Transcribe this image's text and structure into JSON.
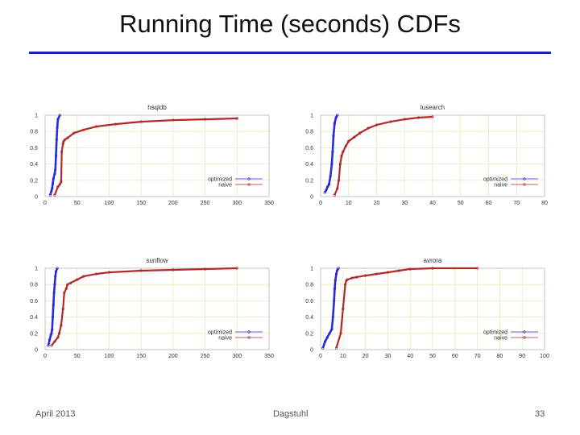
{
  "slide": {
    "title": "Running Time (seconds) CDFs",
    "footer_left": "April 2013",
    "footer_center": "Dagstuhl",
    "footer_right": "33"
  },
  "colors": {
    "optimized": "#2a2ad6",
    "naive": "#b02a2a",
    "grid": "#f0e6b8",
    "axis": "#444444",
    "title_rule": "#1f1fb4"
  },
  "chart_data": [
    {
      "type": "line",
      "title": "hsqldb",
      "xlim": [
        0,
        350
      ],
      "ylim": [
        0,
        1
      ],
      "xticks": [
        0,
        50,
        100,
        150,
        200,
        250,
        300,
        350
      ],
      "yticks": [
        0,
        0.2,
        0.4,
        0.6,
        0.8,
        1
      ],
      "ytick_labels": [
        "0",
        "0.2",
        "0.4",
        "0.6",
        "0.8",
        "1"
      ],
      "grid": true,
      "legend_position": "bottom-right",
      "series": [
        {
          "name": "optimized",
          "color_key": "optimized",
          "x": [
            8,
            10,
            11,
            12,
            13,
            15,
            16,
            17,
            18,
            19,
            20,
            23
          ],
          "y": [
            0.02,
            0.07,
            0.1,
            0.16,
            0.22,
            0.28,
            0.33,
            0.5,
            0.7,
            0.85,
            0.95,
            1.0
          ]
        },
        {
          "name": "naive",
          "color_key": "naive",
          "x": [
            15,
            20,
            23,
            25,
            26,
            28,
            29,
            31,
            35,
            45,
            60,
            80,
            110,
            150,
            200,
            250,
            300
          ],
          "y": [
            0.02,
            0.12,
            0.15,
            0.18,
            0.55,
            0.65,
            0.68,
            0.7,
            0.72,
            0.78,
            0.82,
            0.86,
            0.89,
            0.92,
            0.94,
            0.95,
            0.96
          ]
        }
      ],
      "x_marker": 300
    },
    {
      "type": "line",
      "title": "lusearch",
      "xlim": [
        0,
        80
      ],
      "ylim": [
        0,
        1
      ],
      "xticks": [
        0,
        10,
        20,
        30,
        40,
        50,
        60,
        70,
        80
      ],
      "yticks": [
        0,
        0.2,
        0.4,
        0.6,
        0.8,
        1
      ],
      "ytick_labels": [
        "0",
        "0.2",
        "0.4",
        "0.6",
        "0.8",
        "1"
      ],
      "grid": true,
      "legend_position": "bottom-right",
      "series": [
        {
          "name": "optimized",
          "color_key": "optimized",
          "x": [
            1.5,
            2,
            2.5,
            3,
            3.5,
            4,
            4.3,
            4.6,
            5,
            5.5,
            6
          ],
          "y": [
            0.05,
            0.08,
            0.12,
            0.15,
            0.25,
            0.4,
            0.55,
            0.75,
            0.9,
            0.97,
            1.0
          ]
        },
        {
          "name": "naive",
          "color_key": "naive",
          "x": [
            5,
            6,
            6.5,
            7,
            7.5,
            8,
            9,
            10,
            12,
            14,
            17,
            20,
            25,
            30,
            35,
            40
          ],
          "y": [
            0.02,
            0.1,
            0.2,
            0.4,
            0.5,
            0.55,
            0.62,
            0.68,
            0.73,
            0.78,
            0.84,
            0.88,
            0.92,
            0.95,
            0.97,
            0.98
          ]
        }
      ]
    },
    {
      "type": "line",
      "title": "sunflow",
      "xlim": [
        0,
        350
      ],
      "ylim": [
        0,
        1
      ],
      "xticks": [
        0,
        50,
        100,
        150,
        200,
        250,
        300,
        350
      ],
      "yticks": [
        0,
        0.2,
        0.4,
        0.6,
        0.8,
        1
      ],
      "ytick_labels": [
        "0",
        "0.2",
        "0.4",
        "0.6",
        "0.8",
        "1"
      ],
      "grid": true,
      "legend_position": "bottom-right",
      "series": [
        {
          "name": "optimized",
          "color_key": "optimized",
          "x": [
            5,
            7,
            9,
            10,
            11,
            12,
            13,
            14,
            15,
            16,
            17,
            19
          ],
          "y": [
            0.05,
            0.12,
            0.18,
            0.2,
            0.25,
            0.4,
            0.55,
            0.7,
            0.8,
            0.9,
            0.96,
            1.0
          ]
        },
        {
          "name": "naive",
          "color_key": "naive",
          "x": [
            10,
            15,
            20,
            22,
            25,
            28,
            30,
            33,
            35,
            40,
            50,
            60,
            80,
            100,
            150,
            200,
            250,
            300
          ],
          "y": [
            0.05,
            0.1,
            0.15,
            0.2,
            0.3,
            0.5,
            0.7,
            0.75,
            0.8,
            0.82,
            0.86,
            0.9,
            0.93,
            0.95,
            0.97,
            0.98,
            0.99,
            1.0
          ]
        }
      ]
    },
    {
      "type": "line",
      "title": "avrora",
      "xlim": [
        0,
        100
      ],
      "ylim": [
        0,
        1
      ],
      "xticks": [
        0,
        10,
        20,
        30,
        40,
        50,
        60,
        70,
        80,
        90,
        100
      ],
      "yticks": [
        0,
        0.2,
        0.4,
        0.6,
        0.8,
        1
      ],
      "ytick_labels": [
        "0",
        "0.2",
        "0.4",
        "0.6",
        "0.8",
        "1"
      ],
      "grid": true,
      "legend_position": "bottom-right",
      "series": [
        {
          "name": "optimized",
          "color_key": "optimized",
          "x": [
            1,
            2,
            3,
            4,
            5,
            5.5,
            6,
            6.3,
            6.6,
            7,
            7.5,
            8
          ],
          "y": [
            0.02,
            0.1,
            0.15,
            0.2,
            0.25,
            0.4,
            0.6,
            0.75,
            0.85,
            0.93,
            0.98,
            1.0
          ]
        },
        {
          "name": "naive",
          "color_key": "naive",
          "x": [
            7,
            9,
            10,
            11,
            11.5,
            12,
            14,
            16,
            20,
            25,
            30,
            35,
            40,
            50,
            70
          ],
          "y": [
            0.02,
            0.2,
            0.5,
            0.8,
            0.85,
            0.86,
            0.88,
            0.89,
            0.91,
            0.93,
            0.95,
            0.97,
            0.99,
            1.0,
            1.0
          ]
        }
      ]
    }
  ]
}
